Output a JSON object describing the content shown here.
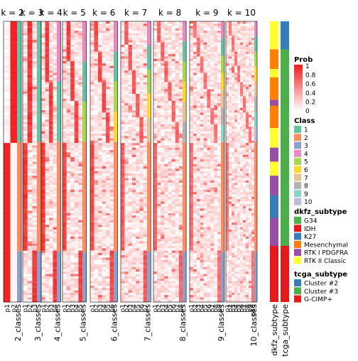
{
  "chart_data": {
    "type": "heatmap",
    "title": "",
    "panels": [
      {
        "k": 2,
        "title": "k = 2",
        "class_label": "2_classes",
        "columns": [
          "p1",
          "p2"
        ],
        "classes": [
          2,
          1
        ],
        "class_split": 0.43,
        "fill": 0.97
      },
      {
        "k": 3,
        "title": "k = 3",
        "class_label": "3_classes",
        "columns": [
          "p1",
          "p2",
          "p3"
        ],
        "classes": [
          2,
          1,
          3
        ],
        "class_split": 0.43,
        "fill": 0.95
      },
      {
        "k": 4,
        "title": "k = 4",
        "class_label": "4_classes",
        "columns": [
          "p1",
          "p2",
          "p3",
          "p4"
        ],
        "classes": [
          2,
          4,
          1,
          3
        ],
        "class_split": 0.43,
        "fill": 0.93
      },
      {
        "k": 5,
        "title": "k = 5",
        "class_label": "5_classes",
        "columns": [
          "p1",
          "p2",
          "p3",
          "p4",
          "p5"
        ],
        "classes": [
          2,
          4,
          1,
          5,
          3
        ],
        "class_split": 0.43,
        "fill": 0.9
      },
      {
        "k": 6,
        "title": "k = 6",
        "class_label": "6_classes",
        "columns": [
          "p1",
          "p2",
          "p3",
          "p4",
          "p5",
          "p6"
        ],
        "classes": [
          2,
          4,
          1,
          5,
          6,
          3
        ],
        "class_split": 0.43,
        "fill": 0.86
      },
      {
        "k": 7,
        "title": "k = 7",
        "class_label": "7_classes",
        "columns": [
          "p1",
          "p2",
          "p3",
          "p4",
          "p5",
          "p6",
          "p7"
        ],
        "classes": [
          2,
          4,
          1,
          5,
          6,
          7,
          3
        ],
        "class_split": 0.43,
        "fill": 0.8
      },
      {
        "k": 8,
        "title": "k = 8",
        "class_label": "8_classes",
        "columns": [
          "p1",
          "p2",
          "p3",
          "p4",
          "p5",
          "p6",
          "p7",
          "p8"
        ],
        "classes": [
          2,
          4,
          1,
          5,
          6,
          7,
          8,
          3
        ],
        "class_split": 0.43,
        "fill": 0.75
      },
      {
        "k": 9,
        "title": "k = 9",
        "class_label": "9_classes",
        "columns": [
          "p1",
          "p2",
          "p3",
          "p4",
          "p5",
          "p6",
          "p7",
          "p8",
          "p9"
        ],
        "classes": [
          2,
          4,
          1,
          5,
          6,
          7,
          8,
          9,
          3
        ],
        "class_split": 0.43,
        "fill": 0.7
      },
      {
        "k": 10,
        "title": "k = 10",
        "class_label": "10_classes",
        "columns": [
          "p1",
          "p2",
          "p3",
          "p4",
          "p5",
          "p6",
          "p7",
          "p8",
          "p9",
          "p10"
        ],
        "classes": [
          2,
          4,
          1,
          5,
          6,
          7,
          8,
          9,
          10,
          3
        ],
        "class_split": 0.43,
        "fill": 0.66
      }
    ],
    "annotation_columns": [
      "dkfz_subtype",
      "tcga_subtype"
    ],
    "dkfz_segments": [
      {
        "value": "RTK II Classic",
        "to": 0.1
      },
      {
        "value": "Mesenchymal",
        "to": 0.17
      },
      {
        "value": "RTK II Classic",
        "to": 0.2
      },
      {
        "value": "Mesenchymal",
        "to": 0.28
      },
      {
        "value": "RTK I PDGFRA",
        "to": 0.3
      },
      {
        "value": "Mesenchymal",
        "to": 0.38
      },
      {
        "value": "RTK II Classic",
        "to": 0.45
      },
      {
        "value": "RTK I PDGFRA",
        "to": 0.5
      },
      {
        "value": "RTK II Classic",
        "to": 0.55
      },
      {
        "value": "RTK I PDGFRA",
        "to": 0.62
      },
      {
        "value": "K27",
        "to": 0.7
      },
      {
        "value": "RTK I PDGFRA",
        "to": 0.8
      },
      {
        "value": "IDH",
        "to": 1.0
      }
    ],
    "tcga_segments": [
      {
        "value": "Cluster #2",
        "to": 0.1
      },
      {
        "value": "Cluster #3",
        "to": 0.8
      },
      {
        "value": "G-CIMP+",
        "to": 1.0
      }
    ],
    "legends": {
      "prob": {
        "title": "Prob",
        "ticks": [
          "1",
          "0.8",
          "0.6",
          "0.4",
          "0.2",
          "0"
        ],
        "high": "#ef1c1c",
        "low": "#ffffff"
      },
      "class": {
        "title": "Class",
        "items": [
          {
            "label": "1",
            "color": "#66c2a5"
          },
          {
            "label": "2",
            "color": "#fc8d62"
          },
          {
            "label": "3",
            "color": "#8da0cb"
          },
          {
            "label": "4",
            "color": "#e78ac3"
          },
          {
            "label": "5",
            "color": "#a6d854"
          },
          {
            "label": "6",
            "color": "#ffd92f"
          },
          {
            "label": "7",
            "color": "#e5c494"
          },
          {
            "label": "8",
            "color": "#b3b3b3"
          },
          {
            "label": "9",
            "color": "#8dd3c7"
          },
          {
            "label": "10",
            "color": "#bebada"
          }
        ]
      },
      "dkfz": {
        "title": "dkfz_subtype",
        "items": [
          {
            "label": "G34",
            "color": "#4daf4a"
          },
          {
            "label": "IDH",
            "color": "#e41a1c"
          },
          {
            "label": "K27",
            "color": "#377eb8"
          },
          {
            "label": "Mesenchymal",
            "color": "#ff7f00"
          },
          {
            "label": "RTK I PDGFRA",
            "color": "#984ea3"
          },
          {
            "label": "RTK II Classic",
            "color": "#ffff33"
          }
        ]
      },
      "tcga": {
        "title": "tcga_subtype",
        "items": [
          {
            "label": "Cluster #2",
            "color": "#377eb8"
          },
          {
            "label": "Cluster #3",
            "color": "#4daf4a"
          },
          {
            "label": "G-CIMP+",
            "color": "#e41a1c"
          }
        ]
      }
    }
  }
}
